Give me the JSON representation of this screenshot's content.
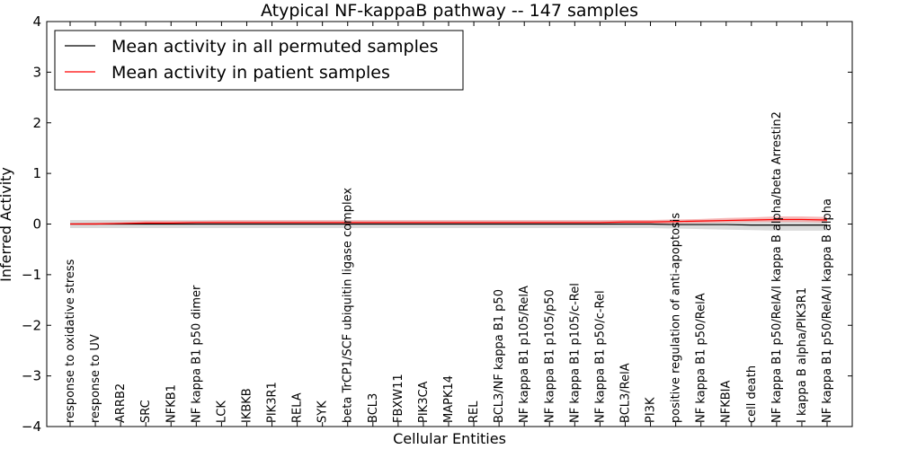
{
  "chart_data": {
    "type": "line",
    "title": "Atypical NF-kappaB pathway -- 147 samples",
    "xlabel": "Cellular Entities",
    "ylabel": "Inferred Activity",
    "ylim": [
      -4,
      4
    ],
    "yticks": [
      -4,
      -3,
      -2,
      -1,
      0,
      1,
      2,
      3,
      4
    ],
    "grid": false,
    "legend_position": "top-left",
    "categories": [
      "response to oxidative stress",
      "response to UV",
      "ARRB2",
      "SRC",
      "NFKB1",
      "NF kappa B1 p50 dimer",
      "LCK",
      "IKBKB",
      "PIK3R1",
      "RELA",
      "SYK",
      "beta TrCP1/SCF ubiquitin ligase complex",
      "BCL3",
      "FBXW11",
      "PIK3CA",
      "MAPK14",
      "REL",
      "BCL3/NF kappa B1 p50",
      "NF kappa B1 p105/RelA",
      "NF kappa B1 p105/p50",
      "NF kappa B1 p105/c-Rel",
      "NF kappa B1 p50/c-Rel",
      "BCL3/RelA",
      "PI3K",
      "positive regulation of anti-apoptosis",
      "NF kappa B1 p50/RelA",
      "NFKBIA",
      "cell death",
      "NF kappa B1 p50/RelA/I kappa B alpha/beta Arrestin2",
      "I kappa B alpha/PIK3R1",
      "NF kappa B1 p50/RelA/I kappa B alpha"
    ],
    "series": [
      {
        "name": "Mean activity in all permuted samples",
        "color": "#000000",
        "values": [
          0.0,
          0.0,
          0.0,
          0.0,
          0.0,
          0.0,
          0.0,
          0.0,
          0.0,
          0.0,
          0.0,
          0.0,
          0.0,
          0.0,
          0.0,
          0.0,
          0.0,
          0.0,
          0.0,
          0.0,
          0.0,
          0.0,
          0.0,
          0.0,
          -0.01,
          -0.01,
          -0.01,
          -0.02,
          -0.02,
          -0.02,
          -0.02
        ],
        "band_upper": [
          0.08,
          0.08,
          0.08,
          0.08,
          0.08,
          0.08,
          0.08,
          0.08,
          0.08,
          0.08,
          0.08,
          0.08,
          0.08,
          0.08,
          0.08,
          0.08,
          0.08,
          0.08,
          0.08,
          0.08,
          0.08,
          0.08,
          0.08,
          0.08,
          0.08,
          0.08,
          0.09,
          0.1,
          0.1,
          0.1,
          0.1
        ],
        "band_lower": [
          -0.08,
          -0.08,
          -0.08,
          -0.08,
          -0.08,
          -0.08,
          -0.08,
          -0.08,
          -0.08,
          -0.08,
          -0.08,
          -0.08,
          -0.08,
          -0.08,
          -0.08,
          -0.08,
          -0.08,
          -0.08,
          -0.08,
          -0.08,
          -0.08,
          -0.08,
          -0.08,
          -0.08,
          -0.09,
          -0.1,
          -0.11,
          -0.12,
          -0.13,
          -0.13,
          -0.13
        ],
        "band_color": "#c8c8c8"
      },
      {
        "name": "Mean activity in patient samples",
        "color": "#ff0000",
        "values": [
          0.0,
          0.0,
          0.01,
          0.02,
          0.02,
          0.03,
          0.03,
          0.03,
          0.03,
          0.03,
          0.03,
          0.03,
          0.03,
          0.03,
          0.03,
          0.03,
          0.03,
          0.03,
          0.03,
          0.03,
          0.03,
          0.03,
          0.04,
          0.04,
          0.05,
          0.06,
          0.07,
          0.08,
          0.09,
          0.09,
          0.08
        ],
        "band_upper": [
          0.02,
          0.03,
          0.04,
          0.06,
          0.06,
          0.06,
          0.07,
          0.07,
          0.07,
          0.07,
          0.07,
          0.07,
          0.07,
          0.07,
          0.07,
          0.07,
          0.07,
          0.07,
          0.07,
          0.07,
          0.07,
          0.07,
          0.08,
          0.08,
          0.09,
          0.1,
          0.12,
          0.13,
          0.15,
          0.15,
          0.14
        ],
        "band_lower": [
          -0.01,
          -0.01,
          -0.01,
          0.0,
          0.0,
          0.0,
          0.0,
          0.0,
          0.0,
          0.0,
          0.0,
          0.0,
          0.0,
          0.0,
          0.0,
          0.0,
          0.0,
          0.0,
          0.0,
          0.0,
          0.0,
          0.0,
          0.0,
          0.0,
          0.01,
          0.02,
          0.03,
          0.04,
          0.04,
          0.04,
          0.03
        ],
        "band_color": "#f4a0a0"
      }
    ]
  }
}
